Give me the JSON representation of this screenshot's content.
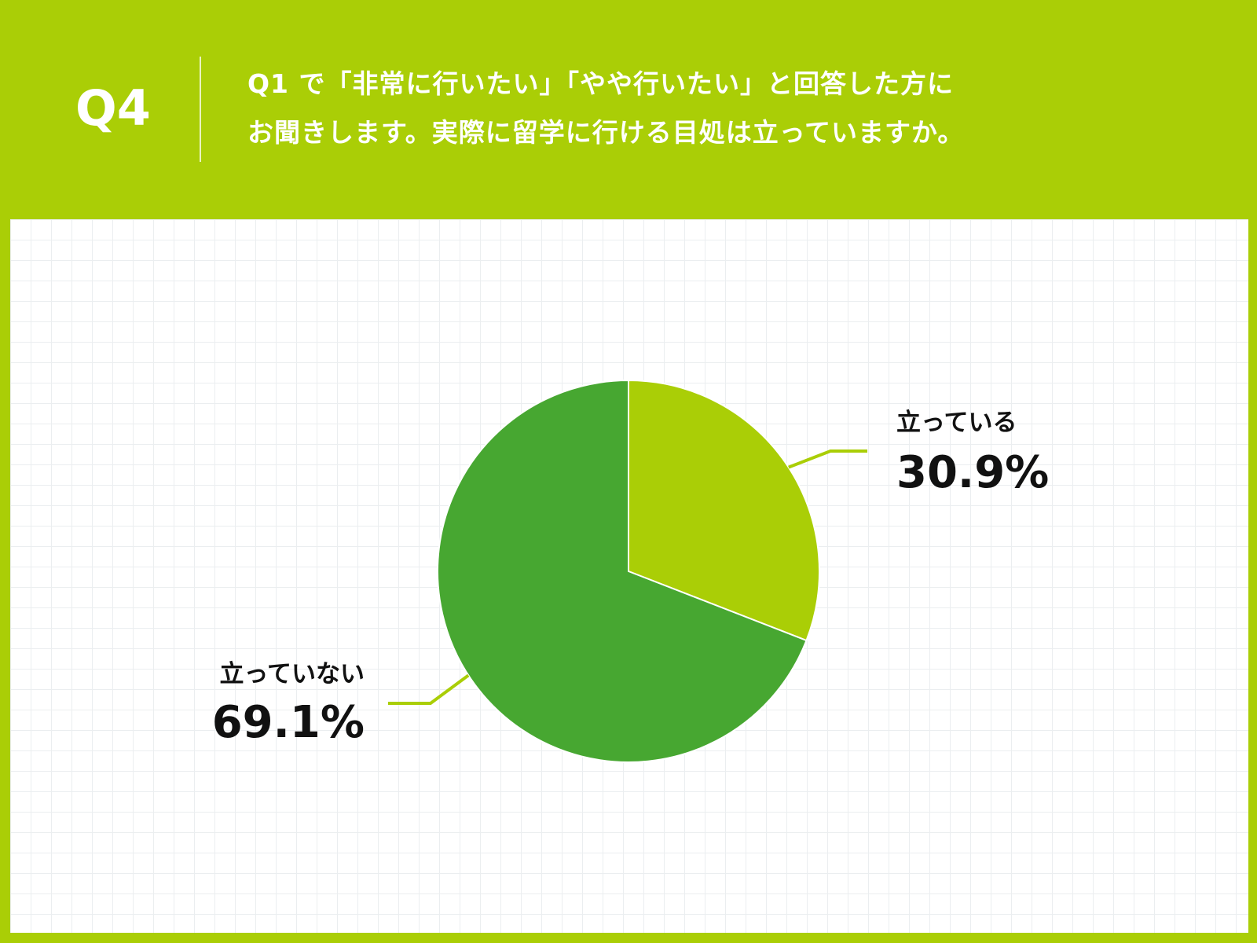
{
  "header": {
    "question_number": "Q4",
    "question_lines": [
      "Q1 で「非常に行いたい」「やや行いたい」と回答した方に",
      "お聞きします。実際に留学に行ける目処は立っていますか。"
    ]
  },
  "colors": {
    "background": "#aace06",
    "panel": "#ffffff",
    "grid": "#ebeef0",
    "leader_line": "#aace06"
  },
  "chart_data": {
    "type": "pie",
    "start_angle_deg": 0,
    "direction": "clockwise",
    "slices": [
      {
        "label": "立っている",
        "value": 30.9,
        "display": "30.9%",
        "color": "#aace06",
        "label_side": "right"
      },
      {
        "label": "立っていない",
        "value": 69.1,
        "display": "69.1%",
        "color": "#47a731",
        "label_side": "left"
      }
    ],
    "grid": true
  }
}
